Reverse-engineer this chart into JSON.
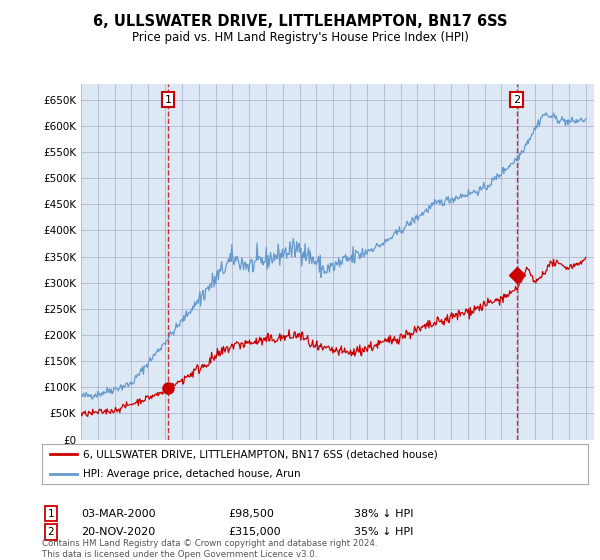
{
  "title": "6, ULLSWATER DRIVE, LITTLEHAMPTON, BN17 6SS",
  "subtitle": "Price paid vs. HM Land Registry's House Price Index (HPI)",
  "property_label": "6, ULLSWATER DRIVE, LITTLEHAMPTON, BN17 6SS (detached house)",
  "hpi_label": "HPI: Average price, detached house, Arun",
  "sale1_date": "03-MAR-2000",
  "sale1_price": "£98,500",
  "sale1_hpi": "38% ↓ HPI",
  "sale2_date": "20-NOV-2020",
  "sale2_price": "£315,000",
  "sale2_hpi": "35% ↓ HPI",
  "footer": "Contains HM Land Registry data © Crown copyright and database right 2024.\nThis data is licensed under the Open Government Licence v3.0.",
  "property_color": "#cc0000",
  "hpi_color": "#6699cc",
  "plot_bg_color": "#dce9f5",
  "background_color": "#ffffff",
  "grid_color": "#aaaacc",
  "ylim": [
    0,
    680000
  ],
  "yticks": [
    0,
    50000,
    100000,
    150000,
    200000,
    250000,
    300000,
    350000,
    400000,
    450000,
    500000,
    550000,
    600000,
    650000
  ],
  "sale1_year": 2000.17,
  "sale1_value": 98500,
  "sale2_year": 2020.9,
  "sale2_value": 315000
}
